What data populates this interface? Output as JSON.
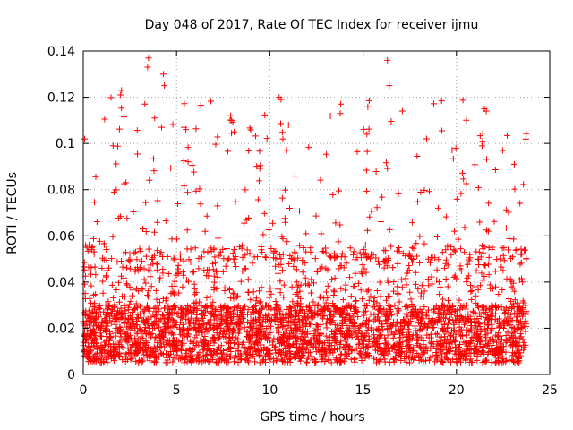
{
  "chart_data": {
    "type": "scatter",
    "title": "Day 048 of 2017, Rate Of TEC Index for receiver ijmu",
    "xlabel": "GPS time / hours",
    "ylabel": "ROTI / TECUs",
    "xlim": [
      0,
      25
    ],
    "ylim": [
      0,
      0.14
    ],
    "x_ticks": [
      0,
      5,
      10,
      15,
      20,
      25
    ],
    "x_tick_labels": [
      "0",
      "5",
      "10",
      "15",
      "20",
      "25"
    ],
    "y_ticks": [
      0,
      0.02,
      0.04,
      0.06,
      0.08,
      0.1,
      0.12,
      0.14
    ],
    "y_tick_labels": [
      "0",
      "0.02",
      "0.04",
      "0.06",
      "0.08",
      "0.1",
      "0.12",
      "0.14"
    ],
    "grid": true,
    "marker": "+",
    "marker_color": "#ff0000",
    "data_range_hours": [
      0,
      23.75
    ],
    "typical_band": [
      0.005,
      0.03
    ],
    "notable_points": [
      {
        "x": 3.5,
        "y": 0.137
      },
      {
        "x": 4.3,
        "y": 0.13
      },
      {
        "x": 4.35,
        "y": 0.125
      },
      {
        "x": 3.45,
        "y": 0.133
      },
      {
        "x": 16.3,
        "y": 0.136
      },
      {
        "x": 16.4,
        "y": 0.125
      },
      {
        "x": 2.05,
        "y": 0.123
      },
      {
        "x": 2.0,
        "y": 0.121
      },
      {
        "x": 10.5,
        "y": 0.12
      },
      {
        "x": 10.6,
        "y": 0.119
      },
      {
        "x": 13.8,
        "y": 0.117
      },
      {
        "x": 3.3,
        "y": 0.117
      },
      {
        "x": 17.1,
        "y": 0.114
      },
      {
        "x": 21.5,
        "y": 0.115
      },
      {
        "x": 21.6,
        "y": 0.114
      },
      {
        "x": 7.9,
        "y": 0.112
      },
      {
        "x": 7.95,
        "y": 0.11
      },
      {
        "x": 5.4,
        "y": 0.107
      },
      {
        "x": 5.5,
        "y": 0.106
      },
      {
        "x": 4.2,
        "y": 0.107
      },
      {
        "x": 11.0,
        "y": 0.108
      },
      {
        "x": 15.2,
        "y": 0.104
      },
      {
        "x": 1.6,
        "y": 0.099
      },
      {
        "x": 18.4,
        "y": 0.102
      },
      {
        "x": 21.4,
        "y": 0.101
      }
    ]
  }
}
